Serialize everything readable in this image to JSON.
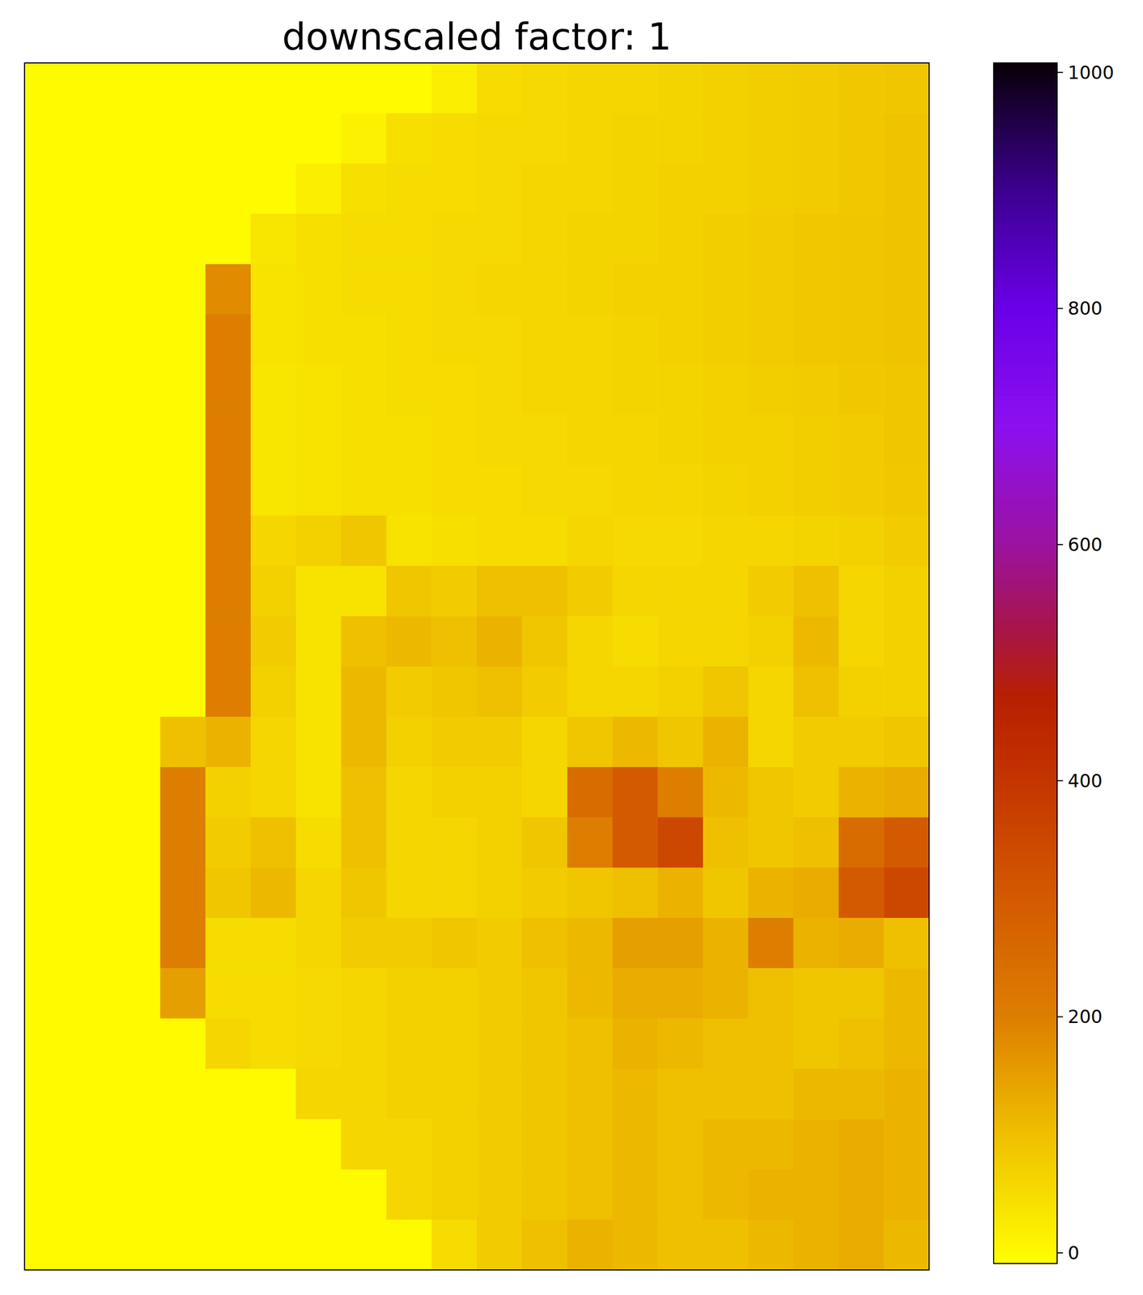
{
  "chart_data": {
    "type": "heatmap",
    "title": "downscaled factor: 1",
    "tick_labels": false,
    "cells": [
      [
        0,
        0,
        0,
        0,
        0,
        0,
        0,
        0,
        0,
        20,
        50,
        55,
        60,
        60,
        65,
        70,
        75,
        80,
        85,
        90
      ],
      [
        0,
        0,
        0,
        0,
        0,
        0,
        0,
        15,
        45,
        50,
        55,
        55,
        60,
        65,
        65,
        70,
        75,
        80,
        85,
        95
      ],
      [
        0,
        0,
        0,
        0,
        0,
        0,
        20,
        45,
        50,
        50,
        55,
        60,
        60,
        65,
        70,
        70,
        75,
        80,
        85,
        95
      ],
      [
        0,
        0,
        0,
        0,
        0,
        35,
        45,
        50,
        50,
        55,
        55,
        60,
        65,
        65,
        70,
        75,
        80,
        85,
        90,
        95
      ],
      [
        0,
        0,
        0,
        0,
        180,
        40,
        45,
        50,
        50,
        55,
        60,
        60,
        65,
        70,
        70,
        75,
        80,
        85,
        90,
        95
      ],
      [
        0,
        0,
        0,
        0,
        200,
        40,
        45,
        45,
        50,
        55,
        55,
        60,
        60,
        65,
        70,
        75,
        80,
        85,
        90,
        95
      ],
      [
        0,
        0,
        0,
        0,
        200,
        35,
        40,
        45,
        50,
        50,
        55,
        60,
        60,
        65,
        65,
        70,
        75,
        80,
        85,
        90
      ],
      [
        0,
        0,
        0,
        0,
        200,
        35,
        40,
        45,
        45,
        50,
        55,
        55,
        60,
        60,
        65,
        70,
        70,
        75,
        80,
        90
      ],
      [
        0,
        0,
        0,
        0,
        200,
        35,
        40,
        45,
        45,
        50,
        50,
        55,
        55,
        60,
        60,
        65,
        70,
        75,
        80,
        85
      ],
      [
        0,
        0,
        0,
        0,
        200,
        60,
        70,
        90,
        40,
        45,
        50,
        50,
        60,
        55,
        55,
        60,
        60,
        65,
        70,
        80
      ],
      [
        0,
        0,
        0,
        0,
        200,
        70,
        40,
        40,
        90,
        80,
        100,
        100,
        80,
        60,
        60,
        60,
        80,
        100,
        60,
        70
      ],
      [
        0,
        0,
        0,
        0,
        200,
        80,
        40,
        100,
        110,
        100,
        120,
        90,
        60,
        50,
        60,
        60,
        70,
        110,
        60,
        70
      ],
      [
        0,
        0,
        0,
        0,
        200,
        70,
        40,
        110,
        80,
        90,
        100,
        80,
        60,
        60,
        70,
        90,
        60,
        100,
        70,
        70
      ],
      [
        0,
        0,
        0,
        100,
        120,
        60,
        40,
        110,
        70,
        80,
        80,
        60,
        90,
        110,
        90,
        120,
        60,
        80,
        80,
        90
      ],
      [
        0,
        0,
        0,
        200,
        70,
        60,
        40,
        100,
        60,
        70,
        70,
        60,
        250,
        300,
        200,
        110,
        90,
        80,
        120,
        130
      ],
      [
        0,
        0,
        0,
        200,
        80,
        100,
        50,
        100,
        60,
        60,
        70,
        90,
        200,
        300,
        350,
        100,
        90,
        100,
        250,
        300
      ],
      [
        0,
        0,
        0,
        200,
        90,
        110,
        60,
        90,
        60,
        60,
        70,
        80,
        90,
        100,
        120,
        90,
        120,
        130,
        300,
        350
      ],
      [
        0,
        0,
        0,
        200,
        50,
        50,
        60,
        80,
        80,
        90,
        80,
        100,
        110,
        150,
        150,
        120,
        200,
        120,
        130,
        100
      ],
      [
        0,
        0,
        0,
        150,
        50,
        50,
        55,
        60,
        70,
        70,
        80,
        90,
        110,
        130,
        130,
        120,
        100,
        90,
        90,
        110
      ],
      [
        0,
        0,
        0,
        0,
        60,
        50,
        55,
        60,
        70,
        70,
        80,
        90,
        100,
        120,
        110,
        100,
        100,
        90,
        100,
        110
      ],
      [
        0,
        0,
        0,
        0,
        0,
        0,
        60,
        60,
        70,
        70,
        80,
        90,
        100,
        110,
        100,
        100,
        100,
        110,
        110,
        120
      ],
      [
        0,
        0,
        0,
        0,
        0,
        0,
        0,
        60,
        60,
        70,
        80,
        90,
        100,
        110,
        100,
        110,
        110,
        120,
        130,
        120
      ],
      [
        0,
        0,
        0,
        0,
        0,
        0,
        0,
        0,
        60,
        70,
        80,
        90,
        100,
        110,
        100,
        110,
        120,
        120,
        130,
        120
      ],
      [
        0,
        0,
        0,
        0,
        0,
        0,
        0,
        0,
        0,
        50,
        80,
        100,
        120,
        110,
        100,
        100,
        110,
        120,
        130,
        110
      ]
    ],
    "colorbar": {
      "range": [
        -9,
        1008
      ],
      "ticks": [
        0,
        200,
        400,
        600,
        800,
        1000
      ]
    }
  }
}
